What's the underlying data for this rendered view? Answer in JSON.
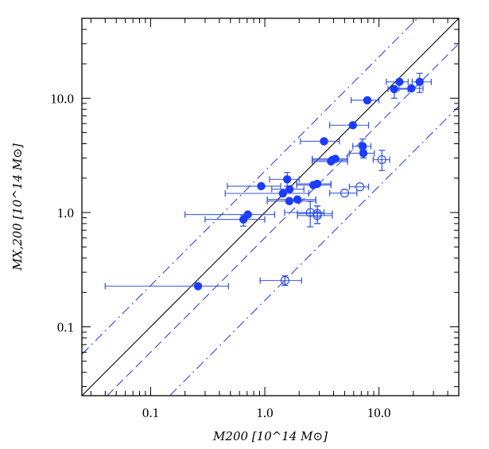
{
  "chart_data": {
    "type": "scatter",
    "title": "",
    "xlabel": "M200  [10^14 M⊙]",
    "ylabel": "MX,200  [10^14 M⊙]",
    "x_scale": "log",
    "y_scale": "log",
    "xlim": [
      0.025,
      50
    ],
    "ylim": [
      0.025,
      50
    ],
    "grid": false,
    "x_ticks": [
      0.1,
      1.0,
      10.0
    ],
    "x_tick_labels": [
      "0.1",
      "1.0",
      "10.0"
    ],
    "y_ticks": [
      0.1,
      1.0,
      10.0
    ],
    "y_tick_labels": [
      "0.1",
      "1.0",
      "10.0"
    ],
    "colors": {
      "points": "#1a3cff",
      "errorbars": "#3050e0",
      "identity": "#000000",
      "bands": "#3344dd"
    },
    "lines": [
      {
        "style": "solid",
        "ratio": 1.0,
        "color": "#000000"
      },
      {
        "style": "dashed",
        "ratio": 0.6,
        "color": "#3344dd"
      },
      {
        "style": "dash-dot",
        "ratio": 2.3,
        "color": "#3344dd"
      },
      {
        "style": "dash-dot",
        "ratio": 0.17,
        "color": "#3344dd"
      }
    ],
    "points": [
      {
        "x": 0.26,
        "y": 0.227,
        "xerr": [
          0.04,
          0.48
        ],
        "yerr": null,
        "filled": true
      },
      {
        "x": 15.1,
        "y": 13.9,
        "xerr": [
          11.6,
          18.0
        ],
        "yerr": null,
        "filled": true
      },
      {
        "x": 22.7,
        "y": 13.9,
        "xerr": [
          19.5,
          28.7
        ],
        "yerr": [
          11.2,
          16.5
        ],
        "filled": true
      },
      {
        "x": 13.6,
        "y": 12.0,
        "xerr": [
          12.0,
          18.0
        ],
        "yerr": [
          10.0,
          12.5
        ],
        "filled": true
      },
      {
        "x": 19.2,
        "y": 12.2,
        "xerr": [
          15.0,
          24.3
        ],
        "yerr": null,
        "filled": true
      },
      {
        "x": 7.9,
        "y": 9.6,
        "xerr": [
          5.7,
          10.0
        ],
        "yerr": null,
        "filled": true
      },
      {
        "x": 5.9,
        "y": 5.8,
        "xerr": [
          3.7,
          8.1
        ],
        "yerr": null,
        "filled": true
      },
      {
        "x": 3.3,
        "y": 4.2,
        "xerr": [
          2.05,
          4.5
        ],
        "yerr": null,
        "filled": true
      },
      {
        "x": 7.2,
        "y": 3.8,
        "xerr": [
          5.9,
          8.5
        ],
        "yerr": [
          3.5,
          4.4
        ],
        "filled": true
      },
      {
        "x": 7.3,
        "y": 3.3,
        "xerr": [
          5.5,
          9.1
        ],
        "yerr": [
          3.0,
          3.6
        ],
        "filled": true
      },
      {
        "x": 3.9,
        "y": 2.88,
        "xerr": [
          2.6,
          5.3
        ],
        "yerr": null,
        "filled": true
      },
      {
        "x": 4.15,
        "y": 2.95,
        "xerr": [
          2.6,
          5.3
        ],
        "yerr": null,
        "filled": true
      },
      {
        "x": 3.8,
        "y": 2.8,
        "xerr": [
          2.6,
          5.3
        ],
        "yerr": null,
        "filled": true
      },
      {
        "x": 1.57,
        "y": 1.95,
        "xerr": [
          1.1,
          2.0
        ],
        "yerr": [
          1.7,
          2.24
        ],
        "filled": true
      },
      {
        "x": 0.93,
        "y": 1.7,
        "xerr": [
          0.47,
          1.38
        ],
        "yerr": null,
        "filled": true
      },
      {
        "x": 2.66,
        "y": 1.74,
        "xerr": [
          1.9,
          3.8
        ],
        "yerr": null,
        "filled": true
      },
      {
        "x": 2.88,
        "y": 1.78,
        "xerr": [
          1.9,
          3.8
        ],
        "yerr": null,
        "filled": true
      },
      {
        "x": 1.65,
        "y": 1.6,
        "xerr": [
          1.15,
          2.2
        ],
        "yerr": null,
        "filled": true
      },
      {
        "x": 1.44,
        "y": 1.47,
        "xerr": [
          0.45,
          2.43
        ],
        "yerr": null,
        "filled": true
      },
      {
        "x": 1.64,
        "y": 1.26,
        "xerr": [
          1.05,
          2.8
        ],
        "yerr": null,
        "filled": true
      },
      {
        "x": 1.93,
        "y": 1.3,
        "xerr": [
          1.05,
          2.8
        ],
        "yerr": null,
        "filled": true
      },
      {
        "x": 0.71,
        "y": 0.96,
        "xerr": [
          0.2,
          1.22
        ],
        "yerr": null,
        "filled": true
      },
      {
        "x": 0.65,
        "y": 0.87,
        "xerr": [
          0.3,
          1.0
        ],
        "yerr": [
          0.76,
          0.95
        ],
        "filled": true
      },
      {
        "x": 10.6,
        "y": 2.9,
        "xerr": [
          8.9,
          12.4
        ],
        "yerr": [
          2.33,
          3.5
        ],
        "filled": false
      },
      {
        "x": 6.8,
        "y": 1.68,
        "xerr": [
          5.5,
          8.1
        ],
        "yerr": null,
        "filled": false
      },
      {
        "x": 5.0,
        "y": 1.48,
        "xerr": [
          3.7,
          6.4
        ],
        "yerr": null,
        "filled": false
      },
      {
        "x": 2.5,
        "y": 1.0,
        "xerr": [
          1.49,
          3.3
        ],
        "yerr": [
          0.75,
          1.25
        ],
        "filled": false
      },
      {
        "x": 2.88,
        "y": 0.98,
        "xerr": [
          1.93,
          3.9
        ],
        "yerr": [
          0.8,
          1.14
        ],
        "filled": false
      },
      {
        "x": 2.88,
        "y": 0.94,
        "xerr": [
          1.93,
          3.9
        ],
        "yerr": [
          0.8,
          1.14
        ],
        "filled": false
      },
      {
        "x": 1.5,
        "y": 0.254,
        "xerr": [
          0.91,
          2.1
        ],
        "yerr": [
          0.23,
          0.28
        ],
        "filled": false
      }
    ]
  }
}
